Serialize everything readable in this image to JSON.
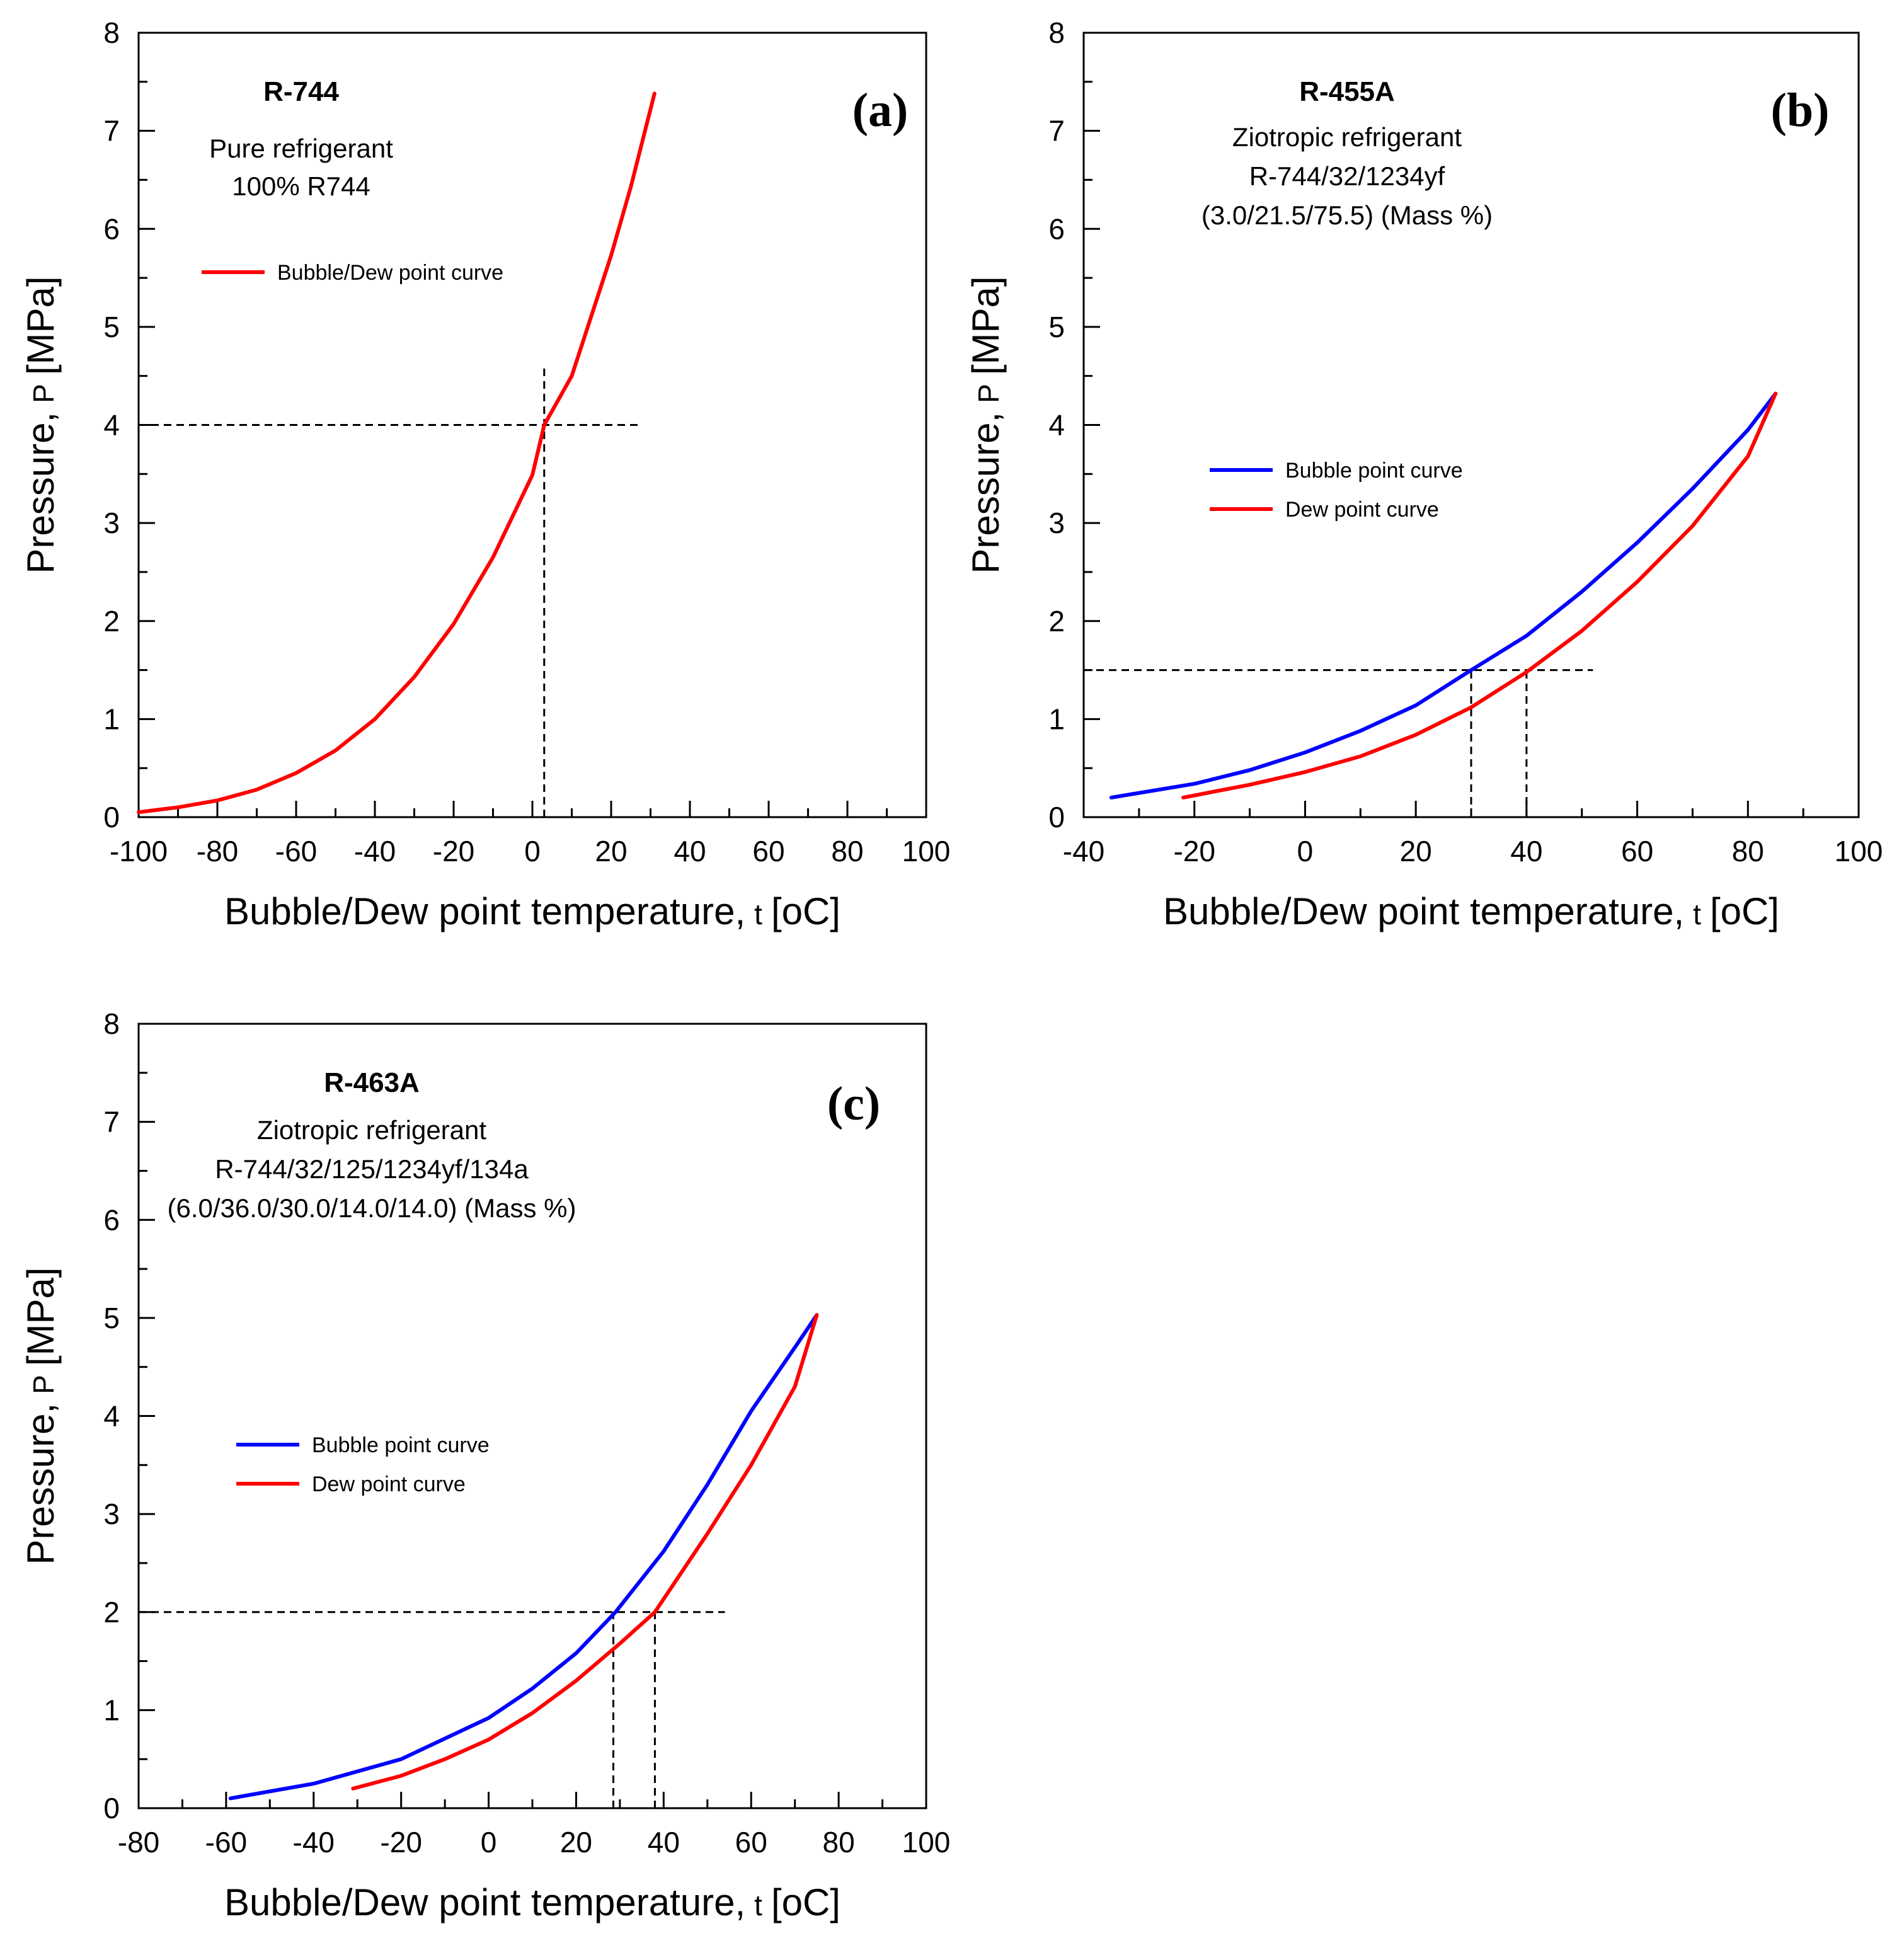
{
  "chart_data": [
    {
      "type": "line",
      "panel_label": "(a)",
      "refrigerant": "R-744",
      "info_lines": [
        "Pure refrigerant",
        "100% R744"
      ],
      "xlabel": "Bubble/Dew point temperature,",
      "xlabel_var": "t",
      "xlabel_unit": "[oC]",
      "ylabel": "Pressure,",
      "ylabel_var": "P",
      "ylabel_unit": "[MPa]",
      "xlim": [
        -100,
        100
      ],
      "ylim": [
        0,
        8
      ],
      "xticks": [
        -100,
        -80,
        -60,
        -40,
        -20,
        0,
        20,
        40,
        60,
        80,
        100
      ],
      "yticks": [
        0,
        1,
        2,
        3,
        4,
        5,
        6,
        7,
        8
      ],
      "grid": false,
      "legend_position": "upper-left",
      "series": [
        {
          "name": "Bubble/Dew point curve",
          "color": "#ff0000",
          "x": [
            -100,
            -90,
            -80,
            -70,
            -60,
            -50,
            -40,
            -30,
            -20,
            -10,
            0,
            3,
            10,
            20,
            25,
            31
          ],
          "y": [
            0.05,
            0.1,
            0.17,
            0.28,
            0.45,
            0.68,
            1.0,
            1.43,
            1.97,
            2.65,
            3.49,
            4.0,
            4.5,
            5.73,
            6.43,
            7.38
          ]
        }
      ],
      "guides": [
        {
          "type": "h",
          "y": 4,
          "x_from": -100,
          "x_to": 28
        },
        {
          "type": "v",
          "x": 3,
          "y_from": 0,
          "y_to": 4.6
        }
      ]
    },
    {
      "type": "line",
      "panel_label": "(b)",
      "refrigerant": "R-455A",
      "info_lines": [
        "Ziotropic refrigerant",
        "R-744/32/1234yf",
        "(3.0/21.5/75.5) (Mass %)"
      ],
      "xlabel": "Bubble/Dew point temperature,",
      "xlabel_var": "t",
      "xlabel_unit": "[oC]",
      "ylabel": "Pressure,",
      "ylabel_var": "P",
      "ylabel_unit": "[MPa]",
      "xlim": [
        -40,
        100
      ],
      "ylim": [
        0,
        8
      ],
      "xticks": [
        -40,
        -20,
        0,
        20,
        40,
        60,
        80,
        100
      ],
      "yticks": [
        0,
        1,
        2,
        3,
        4,
        5,
        6,
        7,
        8
      ],
      "grid": false,
      "legend_position": "center-left",
      "series": [
        {
          "name": "Bubble point curve",
          "color": "#0000ff",
          "x": [
            -35,
            -20,
            -10,
            0,
            10,
            20,
            30,
            40,
            50,
            60,
            70,
            80,
            85
          ],
          "y": [
            0.2,
            0.34,
            0.48,
            0.66,
            0.88,
            1.14,
            1.5,
            1.85,
            2.3,
            2.8,
            3.35,
            3.95,
            4.32
          ]
        },
        {
          "name": "Dew point curve",
          "color": "#ff0000",
          "x": [
            -22,
            -10,
            0,
            10,
            20,
            30,
            40,
            50,
            60,
            70,
            80,
            85
          ],
          "y": [
            0.2,
            0.33,
            0.46,
            0.62,
            0.84,
            1.12,
            1.48,
            1.9,
            2.4,
            2.97,
            3.68,
            4.32
          ]
        }
      ],
      "guides": [
        {
          "type": "h",
          "y": 1.5,
          "x_from": -40,
          "x_to": 52
        },
        {
          "type": "v",
          "x": 30,
          "y_from": 0,
          "y_to": 1.5
        },
        {
          "type": "v",
          "x": 40,
          "y_from": 0,
          "y_to": 1.5
        }
      ]
    },
    {
      "type": "line",
      "panel_label": "(c)",
      "refrigerant": "R-463A",
      "info_lines": [
        "Ziotropic refrigerant",
        "R-744/32/125/1234yf/134a",
        "(6.0/36.0/30.0/14.0/14.0) (Mass %)"
      ],
      "xlabel": "Bubble/Dew point temperature,",
      "xlabel_var": "t",
      "xlabel_unit": "[oC]",
      "ylabel": "Pressure,",
      "ylabel_var": "P",
      "ylabel_unit": "[MPa]",
      "xlim": [
        -80,
        100
      ],
      "ylim": [
        0,
        8
      ],
      "xticks": [
        -80,
        -60,
        -40,
        -20,
        0,
        20,
        40,
        60,
        80,
        100
      ],
      "yticks": [
        0,
        1,
        2,
        3,
        4,
        5,
        6,
        7,
        8
      ],
      "grid": false,
      "legend_position": "center-left",
      "series": [
        {
          "name": "Bubble point curve",
          "color": "#0000ff",
          "x": [
            -59,
            -40,
            -20,
            0,
            10,
            20,
            29,
            40,
            50,
            60,
            70,
            75
          ],
          "y": [
            0.1,
            0.25,
            0.5,
            0.92,
            1.22,
            1.58,
            2.0,
            2.62,
            3.3,
            4.05,
            4.7,
            5.03
          ]
        },
        {
          "name": "Dew point curve",
          "color": "#ff0000",
          "x": [
            -31,
            -20,
            -10,
            0,
            10,
            20,
            30,
            38,
            50,
            60,
            70,
            75
          ],
          "y": [
            0.2,
            0.33,
            0.5,
            0.7,
            0.97,
            1.3,
            1.68,
            2.0,
            2.8,
            3.5,
            4.3,
            5.03
          ]
        }
      ],
      "guides": [
        {
          "type": "h",
          "y": 2,
          "x_from": -80,
          "x_to": 54
        },
        {
          "type": "v",
          "x": 28.5,
          "y_from": 0,
          "y_to": 2
        },
        {
          "type": "v",
          "x": 38,
          "y_from": 0,
          "y_to": 2
        }
      ]
    }
  ]
}
